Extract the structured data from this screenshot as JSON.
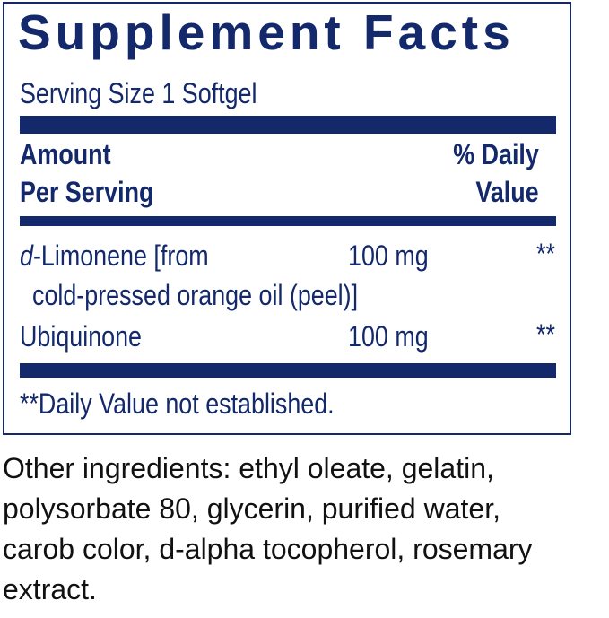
{
  "panel": {
    "title": "Supplement Facts",
    "serving_size": "Serving Size 1 Softgel",
    "header_amount": [
      "Amount",
      "Per Serving"
    ],
    "header_dv": [
      "% Daily",
      "Value"
    ],
    "rows": [
      {
        "name_italic": "d",
        "name": "-Limonene [from",
        "name_line2": "cold-pressed orange oil (peel)]",
        "amount": "100 mg",
        "dv": "**"
      },
      {
        "name": "Ubiquinone",
        "amount": "100 mg",
        "dv": "**"
      }
    ],
    "footnote": "**Daily Value not established."
  },
  "other_ingredients": "Other ingredients: ethyl oleate, gelatin,\npolysorbate 80, glycerin, purified water,\ncarob color, d-alpha tocopherol, rosemary\nextract.",
  "colors": {
    "brand": "#13296b",
    "text": "#111111"
  }
}
